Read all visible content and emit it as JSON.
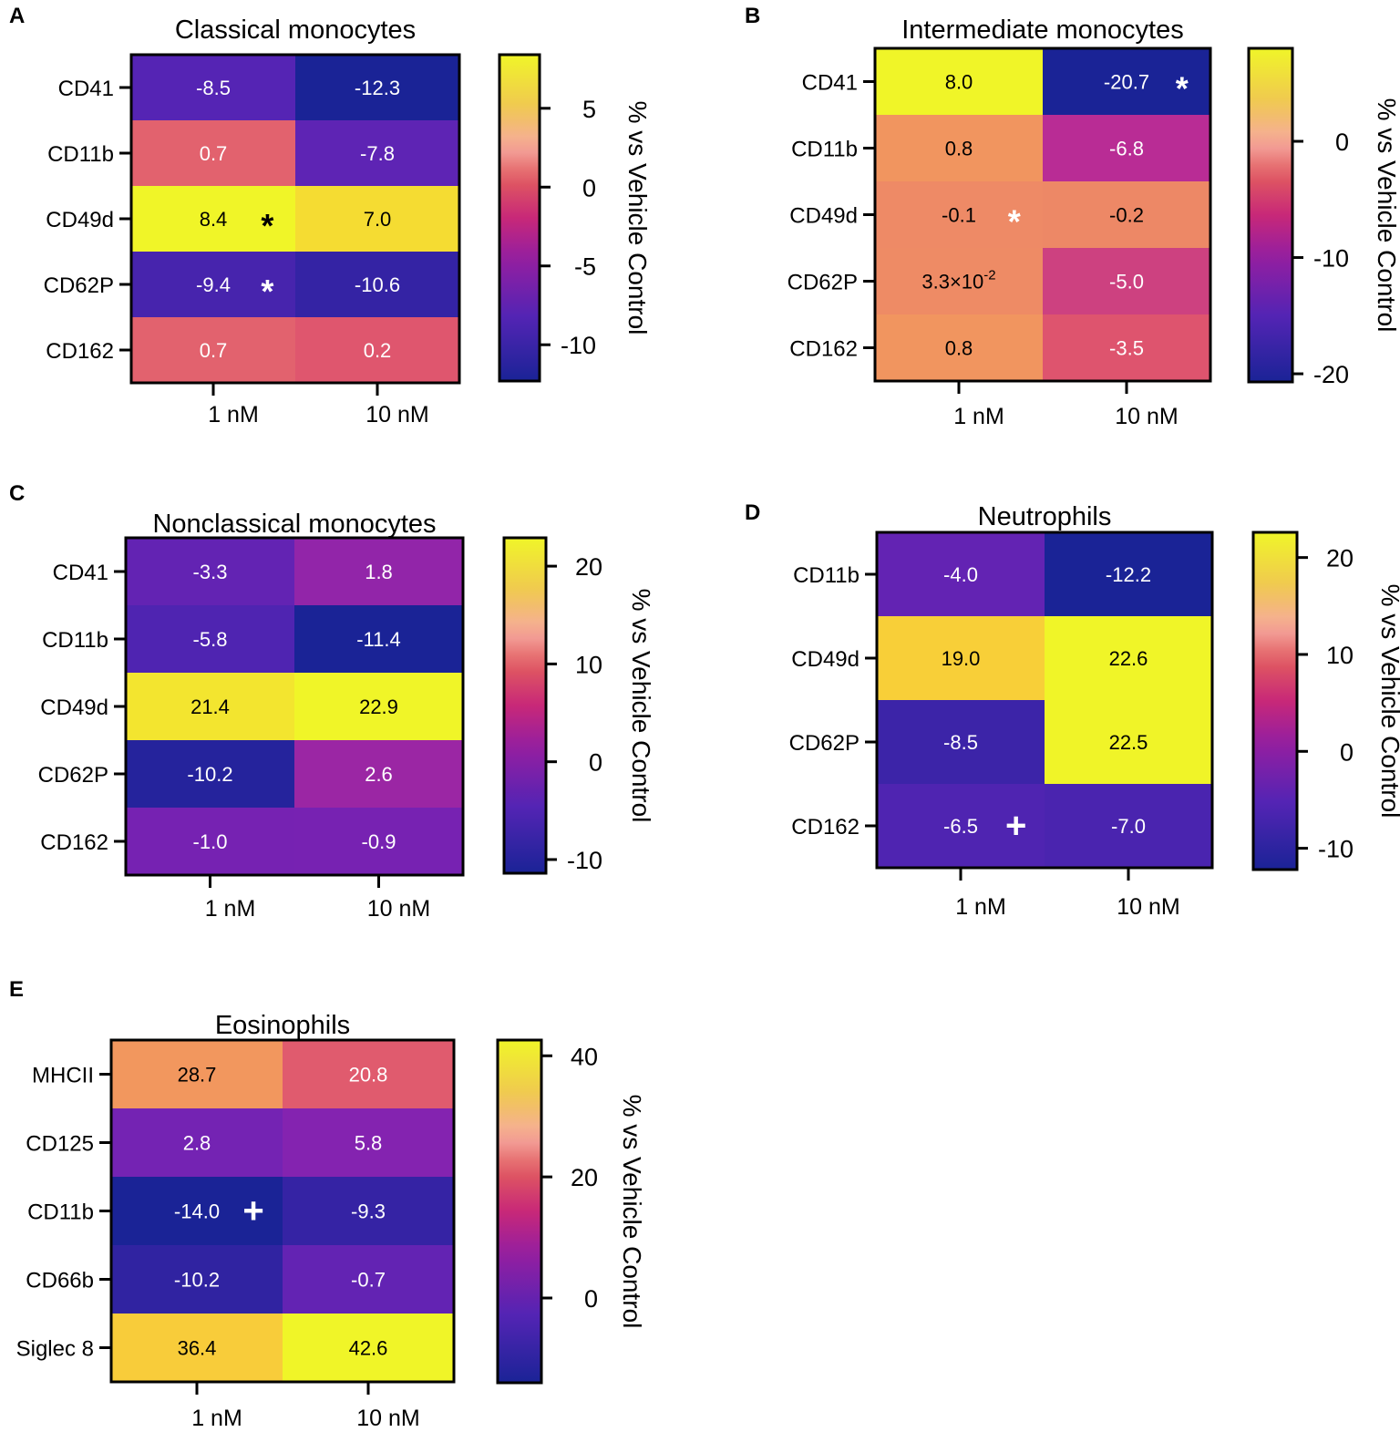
{
  "figure": {
    "colorbar_label": "% vs Vehicle Control"
  },
  "chart_data": [
    {
      "type": "heatmap",
      "panel_label": "A",
      "title": "Classical monocytes",
      "rows": [
        "CD41",
        "CD11b",
        "CD49d",
        "CD62P",
        "CD162"
      ],
      "columns": [
        "1 nM",
        "10 nM"
      ],
      "values": [
        [
          -8.5,
          -12.3
        ],
        [
          0.7,
          -7.8
        ],
        [
          8.4,
          7.0
        ],
        [
          -9.4,
          -10.6
        ],
        [
          0.7,
          0.2
        ]
      ],
      "value_labels": [
        [
          "-8.5",
          "-12.3"
        ],
        [
          "0.7",
          "-7.8"
        ],
        [
          "8.4",
          "7.0"
        ],
        [
          "-9.4",
          "-10.6"
        ],
        [
          "0.7",
          "0.2"
        ]
      ],
      "annotations": [
        {
          "row": 2,
          "col": 0,
          "symbol": "*",
          "color": "#000000"
        },
        {
          "row": 3,
          "col": 0,
          "symbol": "*",
          "color": "#ffffff"
        }
      ],
      "colorbar": {
        "label": "% vs Vehicle Control",
        "min": -12.3,
        "max": 8.4,
        "ticks": [
          5,
          0,
          -5,
          -10
        ]
      }
    },
    {
      "type": "heatmap",
      "panel_label": "B",
      "title": "Intermediate monocytes",
      "rows": [
        "CD41",
        "CD11b",
        "CD49d",
        "CD62P",
        "CD162"
      ],
      "columns": [
        "1 nM",
        "10 nM"
      ],
      "values": [
        [
          8.0,
          -20.7
        ],
        [
          0.8,
          -6.8
        ],
        [
          -0.1,
          -0.2
        ],
        [
          0.033,
          -5.0
        ],
        [
          0.8,
          -3.5
        ]
      ],
      "value_labels": [
        [
          "8.0",
          "-20.7"
        ],
        [
          "0.8",
          "-6.8"
        ],
        [
          "-0.1",
          "-0.2"
        ],
        [
          "3.3×10",
          "-5.0"
        ],
        [
          "0.8",
          "-3.5"
        ]
      ],
      "value_superscripts": [
        [
          "",
          ""
        ],
        [
          "",
          ""
        ],
        [
          "",
          ""
        ],
        [
          "-2",
          ""
        ],
        [
          "",
          ""
        ]
      ],
      "annotations": [
        {
          "row": 0,
          "col": 1,
          "symbol": "*",
          "color": "#ffffff"
        },
        {
          "row": 2,
          "col": 0,
          "symbol": "*",
          "color": "#ffffff"
        }
      ],
      "colorbar": {
        "label": "% vs Vehicle Control",
        "min": -20.7,
        "max": 8.0,
        "ticks": [
          0,
          -10,
          -20
        ]
      }
    },
    {
      "type": "heatmap",
      "panel_label": "C",
      "title": "Nonclassical monocytes",
      "rows": [
        "CD41",
        "CD11b",
        "CD49d",
        "CD62P",
        "CD162"
      ],
      "columns": [
        "1 nM",
        "10 nM"
      ],
      "values": [
        [
          -3.3,
          1.8
        ],
        [
          -5.8,
          -11.4
        ],
        [
          21.4,
          22.9
        ],
        [
          -10.2,
          2.6
        ],
        [
          -1.0,
          -0.9
        ]
      ],
      "value_labels": [
        [
          "-3.3",
          "1.8"
        ],
        [
          "-5.8",
          "-11.4"
        ],
        [
          "21.4",
          "22.9"
        ],
        [
          "-10.2",
          "2.6"
        ],
        [
          "-1.0",
          "-0.9"
        ]
      ],
      "annotations": [],
      "colorbar": {
        "label": "% vs Vehicle Control",
        "min": -11.4,
        "max": 22.9,
        "ticks": [
          20,
          10,
          0,
          -10
        ]
      }
    },
    {
      "type": "heatmap",
      "panel_label": "D",
      "title": "Neutrophils",
      "rows": [
        "CD11b",
        "CD49d",
        "CD62P",
        "CD162"
      ],
      "columns": [
        "1 nM",
        "10 nM"
      ],
      "values": [
        [
          -4.0,
          -12.2
        ],
        [
          19.0,
          22.6
        ],
        [
          -8.5,
          22.5
        ],
        [
          -6.5,
          -7.0
        ]
      ],
      "value_labels": [
        [
          "-4.0",
          "-12.2"
        ],
        [
          "19.0",
          "22.6"
        ],
        [
          "-8.5",
          "22.5"
        ],
        [
          "-6.5",
          "-7.0"
        ]
      ],
      "annotations": [
        {
          "row": 3,
          "col": 0,
          "symbol": "+",
          "color": "#ffffff"
        }
      ],
      "colorbar": {
        "label": "% vs Vehicle Control",
        "min": -12.2,
        "max": 22.6,
        "ticks": [
          20,
          10,
          0,
          -10
        ]
      }
    },
    {
      "type": "heatmap",
      "panel_label": "E",
      "title": "Eosinophils",
      "rows": [
        "MHCII",
        "CD125",
        "CD11b",
        "CD66b",
        "Siglec 8"
      ],
      "columns": [
        "1 nM",
        "10 nM"
      ],
      "values": [
        [
          28.7,
          20.8
        ],
        [
          2.8,
          5.8
        ],
        [
          -14.0,
          -9.3
        ],
        [
          -10.2,
          -0.7
        ],
        [
          36.4,
          42.6
        ]
      ],
      "value_labels": [
        [
          "28.7",
          "20.8"
        ],
        [
          "2.8",
          "5.8"
        ],
        [
          "-14.0",
          "-9.3"
        ],
        [
          "-10.2",
          "-0.7"
        ],
        [
          "36.4",
          "42.6"
        ]
      ],
      "annotations": [
        {
          "row": 2,
          "col": 0,
          "symbol": "+",
          "color": "#ffffff"
        }
      ],
      "colorbar": {
        "label": "% vs Vehicle Control",
        "min": -14.0,
        "max": 42.6,
        "ticks": [
          40,
          20,
          0
        ]
      }
    }
  ]
}
